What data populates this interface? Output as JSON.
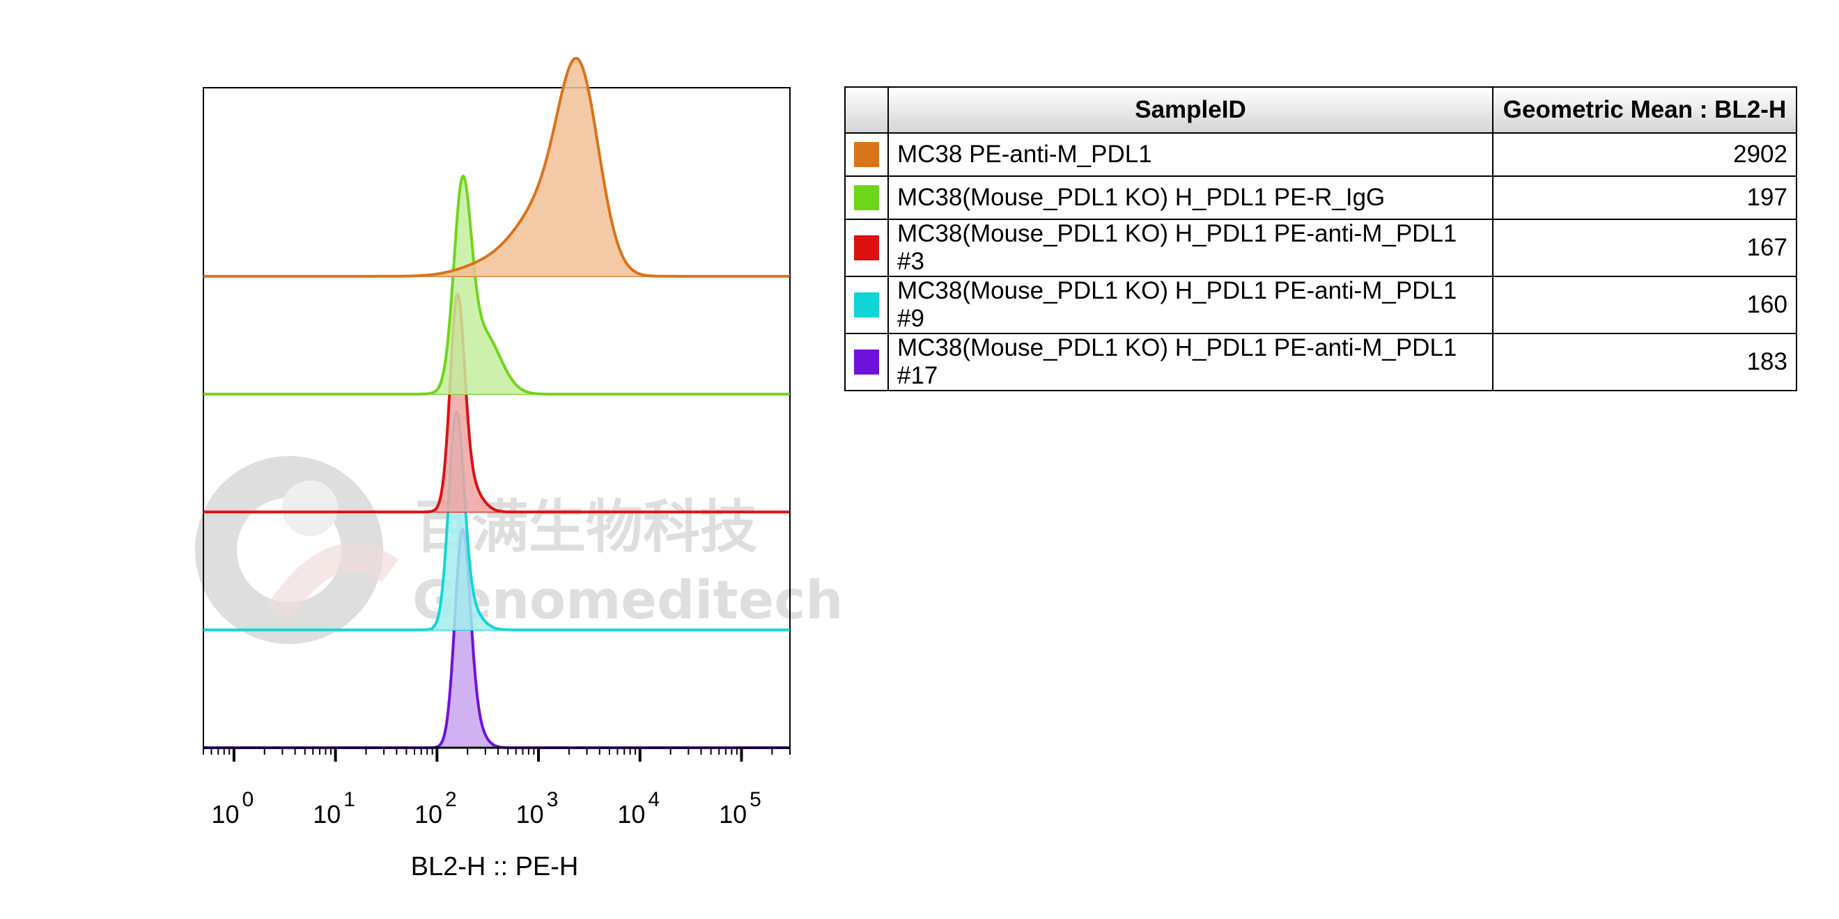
{
  "chart_data": {
    "type": "histogram-overlay",
    "xlabel": "BL2-H :: PE-H",
    "x_scale": "log",
    "xlim": [
      0.5,
      300000
    ],
    "x_ticks": [
      {
        "value": 1,
        "base": "10",
        "exp": "0"
      },
      {
        "value": 10,
        "base": "10",
        "exp": "1"
      },
      {
        "value": 100,
        "base": "10",
        "exp": "2"
      },
      {
        "value": 1000,
        "base": "10",
        "exp": "3"
      },
      {
        "value": 10000,
        "base": "10",
        "exp": "4"
      },
      {
        "value": 100000,
        "base": "10",
        "exp": "5"
      }
    ],
    "table_headers": {
      "sample": "SampleID",
      "value": "Geometric Mean : BL2-H"
    },
    "series": [
      {
        "name": "MC38 PE-anti-M_PDL1",
        "geometric_mean": "2902",
        "color": "#D9731A",
        "fill": "#F2C096",
        "peak_x": 2700,
        "peaks": [
          {
            "mu": 3.4,
            "sigma": 0.2,
            "amp": 1.0
          },
          {
            "mu": 3.05,
            "sigma": 0.28,
            "amp": 0.35
          },
          {
            "mu": 2.5,
            "sigma": 0.28,
            "amp": 0.06
          }
        ]
      },
      {
        "name": "MC38(Mouse_PDL1 KO) H_PDL1 PE-R_IgG",
        "geometric_mean": "197",
        "color": "#6ED61A",
        "fill": "#C4EE9E",
        "peak_x": 175,
        "peaks": [
          {
            "mu": 2.25,
            "sigma": 0.085,
            "amp": 1.0
          },
          {
            "mu": 2.45,
            "sigma": 0.17,
            "amp": 0.33
          }
        ]
      },
      {
        "name": "MC38(Mouse_PDL1 KO) H_PDL1 PE-anti-M_PDL1 #3",
        "geometric_mean": "167",
        "color": "#DD1111",
        "fill": "#F2A3A3",
        "peak_x": 160,
        "peaks": [
          {
            "mu": 2.2,
            "sigma": 0.07,
            "amp": 1.0
          },
          {
            "mu": 2.3,
            "sigma": 0.12,
            "amp": 0.15
          }
        ]
      },
      {
        "name": "MC38(Mouse_PDL1 KO) H_PDL1 PE-anti-M_PDL1 #9",
        "geometric_mean": "160",
        "color": "#11D6D6",
        "fill": "#A3EEEE",
        "peak_x": 150,
        "peaks": [
          {
            "mu": 2.19,
            "sigma": 0.075,
            "amp": 1.0
          },
          {
            "mu": 2.3,
            "sigma": 0.12,
            "amp": 0.12
          }
        ]
      },
      {
        "name": "MC38(Mouse_PDL1 KO) H_PDL1 PE-anti-M_PDL1 #17",
        "geometric_mean": "183",
        "color": "#6F11DD",
        "fill": "#C8A3EE",
        "peak_x": 185,
        "peaks": [
          {
            "mu": 2.25,
            "sigma": 0.075,
            "amp": 1.0
          },
          {
            "mu": 2.35,
            "sigma": 0.1,
            "amp": 0.12
          }
        ]
      }
    ],
    "grid": false,
    "legend": "table-right"
  },
  "watermark": {
    "cn": "百满生物科技",
    "en": "Genomeditech"
  }
}
